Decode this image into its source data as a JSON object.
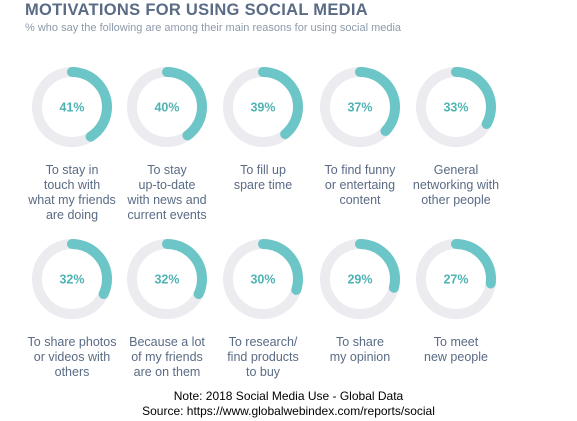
{
  "title": "MOTIVATIONS FOR USING SOCIAL MEDIA",
  "subtitle": "% who say the following are among their main reasons for using social media",
  "colors": {
    "arc": "#6cc5c7",
    "track": "#ebebf0",
    "percent": "#4fb3b3",
    "text": "#5a6b85"
  },
  "chart_data": {
    "type": "donut-grid",
    "title": "MOTIVATIONS FOR USING SOCIAL MEDIA",
    "subtitle": "% who say the following are among their main reasons for using social media",
    "unit": "%",
    "items": [
      {
        "label": "To stay in\ntouch with\nwhat my friends\nare doing",
        "value": 41,
        "value_label": "41%"
      },
      {
        "label": "To stay\nup-to-date\nwith news and\ncurrent events",
        "value": 40,
        "value_label": "40%"
      },
      {
        "label": "To fill up\nspare time",
        "value": 39,
        "value_label": "39%"
      },
      {
        "label": "To find funny\nor entertaing\ncontent",
        "value": 37,
        "value_label": "37%"
      },
      {
        "label": "General\nnetworking with\nother people",
        "value": 33,
        "value_label": "33%"
      },
      {
        "label": "To share photos\nor videos with\nothers",
        "value": 32,
        "value_label": "32%"
      },
      {
        "label": "Because a lot\nof my friends\nare on them",
        "value": 32,
        "value_label": "32%"
      },
      {
        "label": "To research/\nfind products\nto buy",
        "value": 30,
        "value_label": "30%"
      },
      {
        "label": "To share\nmy opinion",
        "value": 29,
        "value_label": "29%"
      },
      {
        "label": "To meet\nnew people",
        "value": 27,
        "value_label": "27%"
      }
    ]
  },
  "footer": {
    "note": "Note: 2018 Social Media Use - Global Data",
    "source": "Source: https://www.globalwebindex.com/reports/social"
  }
}
